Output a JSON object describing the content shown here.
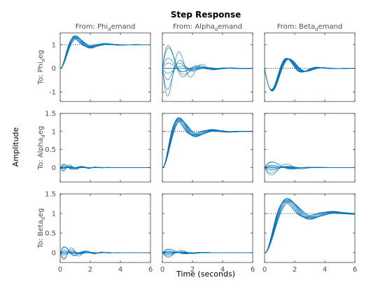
{
  "chart_data": {
    "type": "line",
    "title": "Step Response",
    "xlabel": "Time (seconds)",
    "ylabel": "Amplitude",
    "series_color": "#0072bd",
    "xlim": [
      0,
      6
    ],
    "xticks": [
      0,
      2,
      4,
      6
    ],
    "grid": false,
    "inputs": [
      {
        "prefix": "From: Phi",
        "sub": "d",
        "suffix": "emand"
      },
      {
        "prefix": "From: Alpha",
        "sub": "d",
        "suffix": "emand"
      },
      {
        "prefix": "From: Beta",
        "sub": "d",
        "suffix": "emand"
      }
    ],
    "outputs": [
      {
        "prefix": "To: Phi",
        "sub": "d",
        "suffix": "eg"
      },
      {
        "prefix": "To: Alpha",
        "sub": "d",
        "suffix": "eg"
      },
      {
        "prefix": "To: Beta",
        "sub": "d",
        "suffix": "eg"
      }
    ],
    "rows": [
      {
        "ylim": [
          -1.4,
          1.5
        ],
        "yticks": [
          -1,
          0,
          1
        ]
      },
      {
        "ylim": [
          -0.4,
          1.5
        ],
        "yticks": [
          0,
          0.5,
          1,
          1.5
        ]
      },
      {
        "ylim": [
          -0.25,
          1.5
        ],
        "yticks": [
          0,
          0.5,
          1,
          1.5
        ]
      }
    ],
    "num_models": 10,
    "panels": [
      [
        {
          "steady": 1,
          "kind": "main",
          "peak": 1.38,
          "peak_t": 1.0,
          "spread": 0.15
        },
        {
          "steady": 0,
          "kind": "cross",
          "amp": 1.2,
          "peak_t": 0.9,
          "spread": 0.9
        },
        {
          "steady": 0,
          "kind": "dip",
          "amp": -1.25,
          "peak_t": 1.1,
          "spread": 0.12
        }
      ],
      [
        {
          "steady": 0,
          "kind": "cross",
          "amp": 0.1,
          "peak_t": 0.5,
          "spread": 0.8
        },
        {
          "steady": 1,
          "kind": "main",
          "peak": 1.38,
          "peak_t": 1.1,
          "spread": 0.12
        },
        {
          "steady": 0,
          "kind": "cross",
          "amp": 0.25,
          "peak_t": 1.2,
          "spread": 0.8
        }
      ],
      [
        {
          "steady": 0,
          "kind": "cross",
          "amp": 0.18,
          "peak_t": 0.6,
          "spread": 0.8
        },
        {
          "steady": 0,
          "kind": "cross",
          "amp": 0.12,
          "peak_t": 1.0,
          "spread": 0.9
        },
        {
          "steady": 1,
          "kind": "main",
          "peak": 1.38,
          "peak_t": 1.5,
          "spread": 0.12
        }
      ]
    ]
  }
}
